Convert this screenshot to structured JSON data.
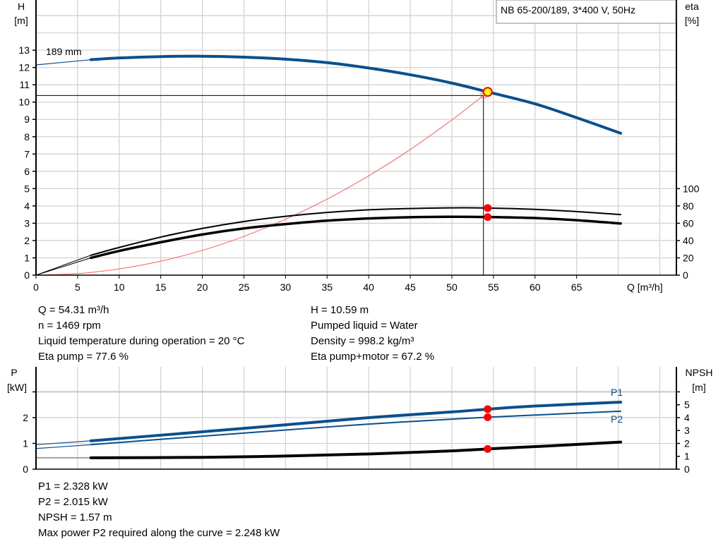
{
  "colors": {
    "head": "#0b4f8c",
    "power": "#0b4f8c",
    "eta": "#000000",
    "system": "#ff5a5a",
    "point": "#ff0000",
    "duty": "#ffff00",
    "grid": "#d3d3d3"
  },
  "chart_data": [
    {
      "type": "line",
      "legend_box": "NB 65-200/189, 3*400 V, 50Hz",
      "xlabel": "Q [m³/h]",
      "ylabel_left": [
        "H",
        "[m]"
      ],
      "ylabel_right": [
        "eta",
        "[%]"
      ],
      "curve_label": "189 mm",
      "xlim": [
        0,
        77
      ],
      "ylim_left": [
        0,
        15.9
      ],
      "ylim_right": [
        0,
        318
      ],
      "grid": true,
      "x_ticks": [
        0,
        5,
        10,
        15,
        20,
        25,
        30,
        35,
        40,
        45,
        50,
        55,
        60,
        65
      ],
      "y_left_ticks": [
        0,
        1,
        2,
        3,
        4,
        5,
        6,
        7,
        8,
        9,
        10,
        11,
        12,
        13
      ],
      "y_right_ticks": [
        0,
        20,
        40,
        60,
        80,
        100
      ],
      "series": [
        {
          "key": "H",
          "axis": "left",
          "x": [
            0,
            6.6,
            10,
            15,
            20,
            25,
            30,
            35,
            40,
            45,
            50,
            54.31,
            60,
            65,
            70.3
          ],
          "y": [
            12.15,
            12.45,
            12.55,
            12.63,
            12.65,
            12.6,
            12.48,
            12.28,
            11.97,
            11.58,
            11.1,
            10.59,
            9.9,
            9.1,
            8.2
          ]
        },
        {
          "key": "eta_pump",
          "axis": "right",
          "x": [
            0,
            6.6,
            10,
            15,
            20,
            25,
            30,
            35,
            40,
            45,
            50,
            54.31,
            60,
            65,
            70.3
          ],
          "y": [
            0,
            23,
            32,
            44,
            54,
            62,
            68,
            72.5,
            75.5,
            77,
            77.8,
            77.6,
            76,
            73.5,
            70
          ]
        },
        {
          "key": "eta_pump_motor",
          "axis": "right",
          "x": [
            0,
            6.6,
            10,
            15,
            20,
            25,
            30,
            35,
            40,
            45,
            50,
            54.31,
            60,
            65,
            70.3
          ],
          "y": [
            0,
            20,
            28,
            38,
            47,
            54,
            59,
            63,
            65.5,
            67,
            67.5,
            67.2,
            66,
            63.5,
            59.7
          ]
        },
        {
          "key": "system",
          "axis": "left",
          "x": [
            0,
            5,
            10,
            15,
            20,
            25,
            30,
            35,
            40,
            45,
            50,
            53.8
          ],
          "y": [
            0,
            0.09,
            0.36,
            0.81,
            1.43,
            2.24,
            3.23,
            4.39,
            5.74,
            7.26,
            8.97,
            10.38
          ]
        }
      ],
      "duty_point": {
        "Q": 54.31,
        "H": 10.59,
        "eta_pump": 77.6,
        "eta_pump_motor": 67.2
      },
      "requested_point": {
        "Q": 53.8,
        "H": 10.38
      }
    },
    {
      "type": "line",
      "ylabel_left": [
        "P",
        "[kW]"
      ],
      "ylabel_right": [
        "NPSH",
        "[m]"
      ],
      "xlim": [
        0,
        77
      ],
      "ylim_left": [
        0,
        3.97
      ],
      "ylim_right": [
        0,
        7.94
      ],
      "grid": true,
      "y_left_ticks": [
        0,
        1,
        2
      ],
      "y_right_ticks": [
        0,
        1,
        2,
        3,
        4,
        5
      ],
      "series": [
        {
          "key": "P1",
          "name": "P1",
          "axis": "left",
          "x": [
            0,
            6.6,
            20,
            30,
            40,
            50,
            54.31,
            60,
            70.3
          ],
          "y": [
            0.95,
            1.1,
            1.45,
            1.72,
            2.0,
            2.22,
            2.328,
            2.45,
            2.6
          ]
        },
        {
          "key": "P2",
          "name": "P2",
          "axis": "left",
          "x": [
            0,
            6.6,
            20,
            30,
            40,
            50,
            54.31,
            60,
            70.3
          ],
          "y": [
            0.8,
            0.95,
            1.28,
            1.52,
            1.75,
            1.94,
            2.015,
            2.1,
            2.25
          ]
        },
        {
          "key": "NPSH",
          "axis": "right",
          "x": [
            0,
            6.6,
            20,
            30,
            40,
            50,
            54.31,
            60,
            70.3
          ],
          "y": [
            0.88,
            0.88,
            0.92,
            1.02,
            1.18,
            1.42,
            1.57,
            1.75,
            2.1
          ]
        }
      ],
      "duty_point": {
        "Q": 54.31,
        "P1": 2.328,
        "P2": 2.015,
        "NPSH": 1.57
      }
    }
  ],
  "info_top": {
    "left": [
      "Q = 54.31 m³/h",
      "n = 1469 rpm",
      "Liquid temperature during operation = 20 °C",
      "Eta pump = 77.6 %"
    ],
    "right": [
      "H = 10.59 m",
      "Pumped liquid = Water",
      "Density = 998.2 kg/m³",
      "Eta pump+motor = 67.2 %"
    ]
  },
  "info_bottom": [
    "P1 = 2.328 kW",
    "P2 = 2.015 kW",
    "NPSH = 1.57 m",
    "Max power P2 required along the curve = 2.248 kW"
  ]
}
